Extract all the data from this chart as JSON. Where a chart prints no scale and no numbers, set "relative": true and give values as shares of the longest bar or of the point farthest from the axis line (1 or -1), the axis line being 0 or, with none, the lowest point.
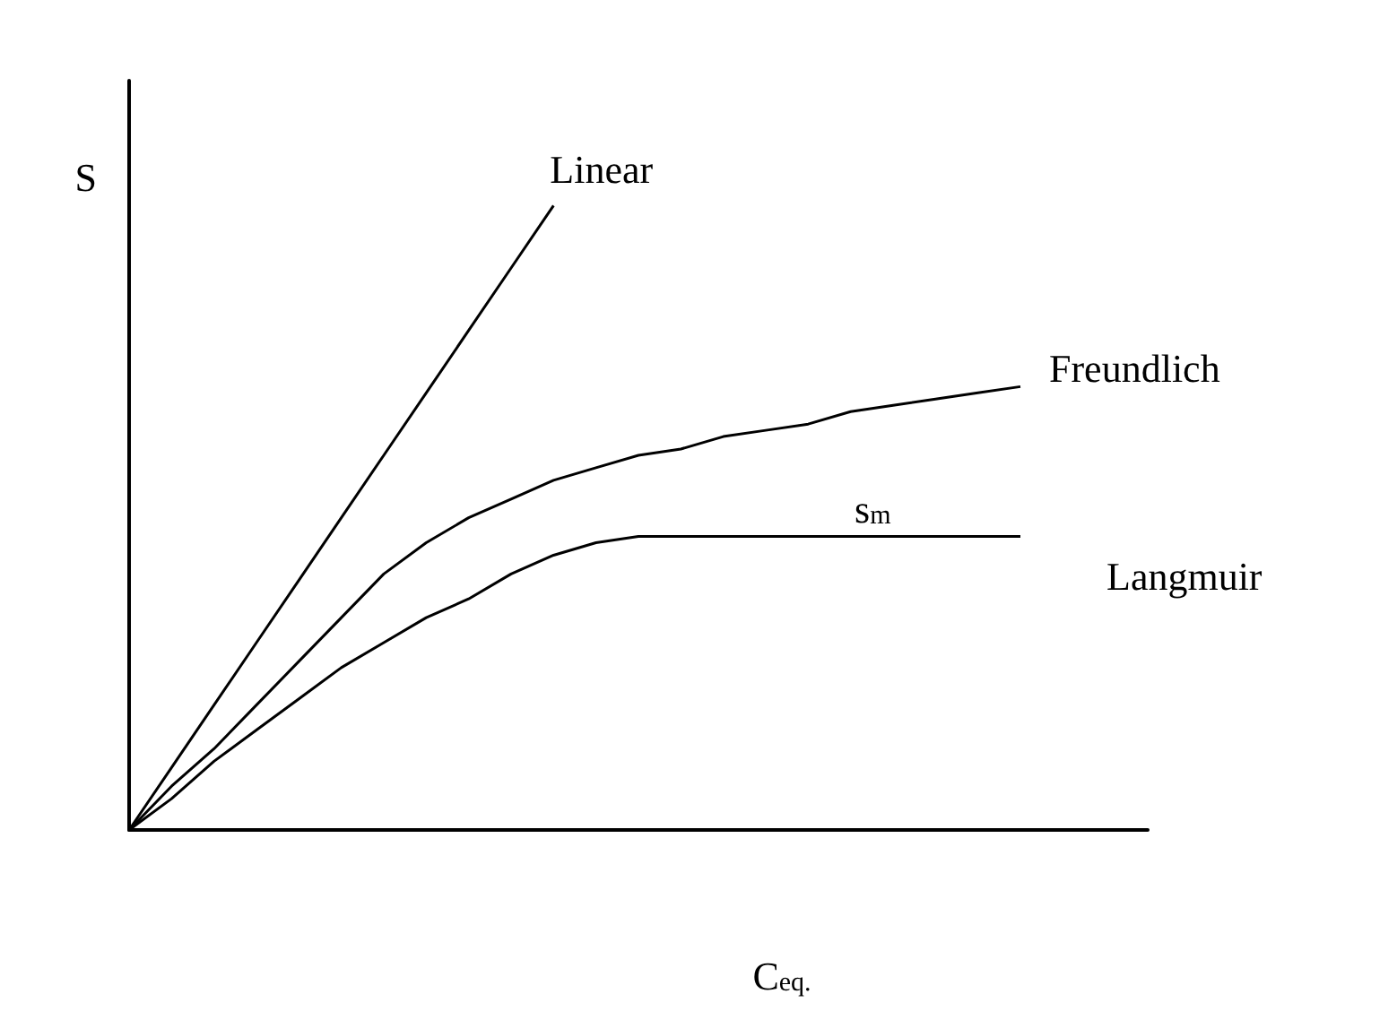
{
  "chart_data": {
    "type": "line",
    "relative": true,
    "xlabel": "C$_{eq.}$",
    "ylabel": "S",
    "grid": false,
    "legend": false,
    "marker": "none",
    "line_style": "solid",
    "categories": [
      null,
      null,
      null,
      null,
      null,
      null,
      null,
      null,
      null,
      null,
      null,
      null,
      null,
      null,
      null,
      null,
      null,
      null,
      null,
      null,
      null,
      null,
      null,
      null,
      null
    ],
    "annotations": [
      {
        "text": "s$_{m}$",
        "y": 0.47
      }
    ],
    "series": [
      {
        "name": "Linear",
        "color": "#000000",
        "values": [
          0,
          0.1,
          0.2,
          0.3,
          0.4,
          0.5,
          0.6,
          0.7,
          0.8,
          0.9,
          1.0,
          null,
          null,
          null,
          null,
          null,
          null,
          null,
          null,
          null,
          null,
          null,
          null,
          null,
          null
        ]
      },
      {
        "name": "Freundlich",
        "color": "#000000",
        "values": [
          0,
          0.07,
          0.13,
          0.2,
          0.27,
          0.34,
          0.41,
          0.46,
          0.5,
          0.53,
          0.56,
          0.58,
          0.6,
          0.61,
          0.63,
          0.64,
          0.65,
          0.67,
          0.68,
          0.69,
          0.7,
          0.71,
          null,
          null,
          null
        ]
      },
      {
        "name": "Langmuir",
        "color": "#000000",
        "values": [
          0,
          0.05,
          0.11,
          0.16,
          0.21,
          0.26,
          0.3,
          0.34,
          0.37,
          0.41,
          0.44,
          0.46,
          0.47,
          0.47,
          0.47,
          0.47,
          0.47,
          0.47,
          0.47,
          0.47,
          0.47,
          0.47,
          null,
          null,
          null
        ]
      }
    ]
  }
}
